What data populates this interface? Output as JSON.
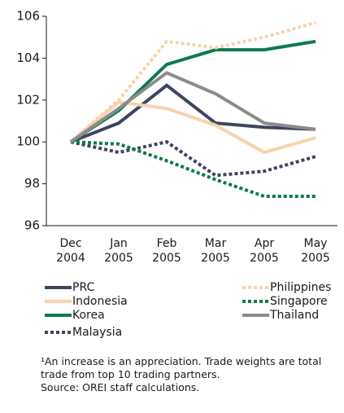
{
  "chart_data": {
    "type": "line",
    "categories": [
      "Dec 2004",
      "Jan 2005",
      "Feb 2005",
      "Mar 2005",
      "Apr 2005",
      "May 2005"
    ],
    "ylim": [
      96,
      106
    ],
    "yticks": [
      96,
      98,
      100,
      102,
      104,
      106
    ],
    "grid": false,
    "series": [
      {
        "name": "PRC",
        "color": "#3d4560",
        "style": "solid",
        "values": [
          100,
          100.9,
          102.7,
          100.9,
          100.7,
          100.6
        ]
      },
      {
        "name": "Indonesia",
        "color": "#f8d3ad",
        "style": "solid",
        "values": [
          100,
          101.9,
          101.6,
          100.8,
          99.5,
          100.2
        ]
      },
      {
        "name": "Korea",
        "color": "#0e7a4f",
        "style": "solid",
        "values": [
          100,
          101.5,
          103.7,
          104.4,
          104.4,
          104.8
        ]
      },
      {
        "name": "Malaysia",
        "color": "#3d4560",
        "style": "dotted",
        "values": [
          100,
          99.5,
          100.0,
          98.4,
          98.6,
          99.3
        ]
      },
      {
        "name": "Philippines",
        "color": "#f8d3ad",
        "style": "dotted",
        "values": [
          100,
          102.0,
          104.8,
          104.5,
          105.0,
          105.7
        ]
      },
      {
        "name": "Singapore",
        "color": "#0e7a4f",
        "style": "dotted",
        "values": [
          100,
          99.9,
          99.1,
          98.2,
          97.4,
          97.4
        ]
      },
      {
        "name": "Thailand",
        "color": "#8c8c8c",
        "style": "solid",
        "values": [
          100,
          101.6,
          103.3,
          102.3,
          100.9,
          100.6
        ]
      }
    ],
    "notes": [
      "¹An increase is an appreciation. Trade weights are total trade from top 10 trading partners.",
      "Source: OREI staff calculations."
    ]
  }
}
